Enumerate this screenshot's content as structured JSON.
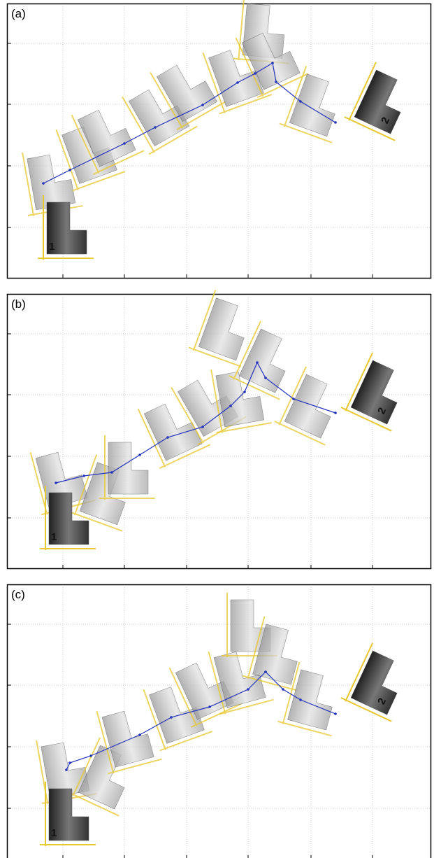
{
  "panels": [
    {
      "label": "(a)",
      "start_robot": "1",
      "end_robot": "2"
    },
    {
      "label": "(b)",
      "start_robot": "1",
      "end_robot": "2"
    },
    {
      "label": "(c)",
      "start_robot": "1",
      "end_robot": "2"
    }
  ]
}
